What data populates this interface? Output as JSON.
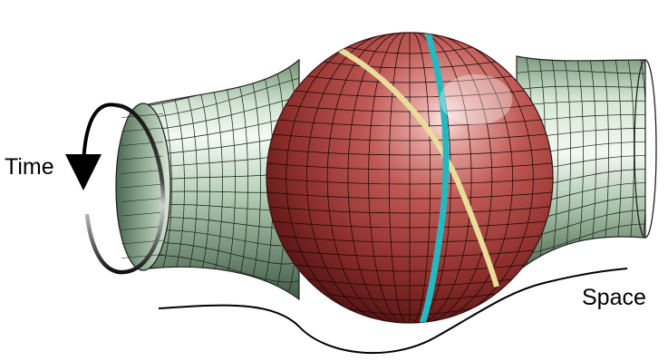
{
  "labels": {
    "time": "Time",
    "space": "Space"
  },
  "colors": {
    "tube": "#b9d4bb",
    "tube_shadow": "#4d6a4f",
    "sphere": "#b8504c",
    "sphere_dark": "#6a1f1e",
    "geodesic_yellow": "#e8dc9a",
    "geodesic_cyan": "#27b9c2",
    "mesh_line": "#1a1a1a"
  },
  "icons": {
    "time_arrow": "circular-arrow-icon",
    "space_curve": "wavy-line"
  }
}
